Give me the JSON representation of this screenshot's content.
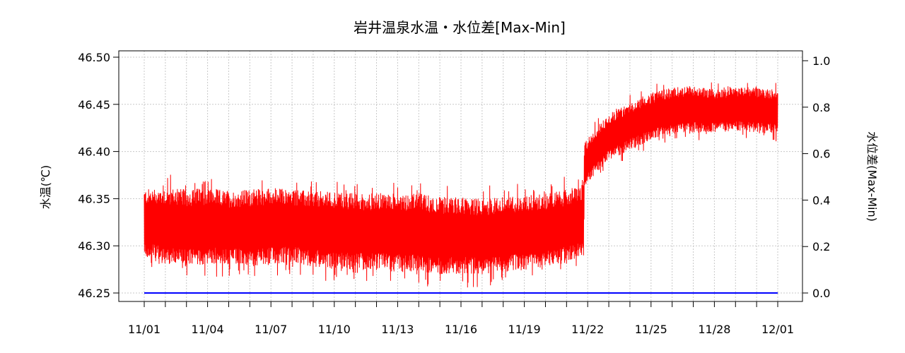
{
  "chart_data": {
    "type": "line",
    "title": "岩井温泉水温・水位差[Max-Min]",
    "ylabel_left": "水温(℃)",
    "ylabel_right": "水位差(Max-Min)",
    "x_range": [
      "11/01",
      "12/01"
    ],
    "x_tick_labels": [
      "11/01",
      "11/04",
      "11/07",
      "11/10",
      "11/13",
      "11/16",
      "11/19",
      "11/22",
      "11/25",
      "11/28",
      "12/01"
    ],
    "ylim_left": [
      46.25,
      46.5
    ],
    "ylim_right": [
      0.0,
      1.0
    ],
    "y_left_ticks": [
      "46.25",
      "46.30",
      "46.35",
      "46.40",
      "46.45",
      "46.50"
    ],
    "y_right_ticks": [
      "0.0",
      "0.2",
      "0.4",
      "0.6",
      "0.8",
      "1.0"
    ],
    "grid": true,
    "series": [
      {
        "axis": "left",
        "color": "#ff0000",
        "band": [
          {
            "day": 0.0,
            "low": 46.288,
            "high": 46.36
          },
          {
            "day": 1.0,
            "low": 46.28,
            "high": 46.362
          },
          {
            "day": 2.0,
            "low": 46.278,
            "high": 46.36
          },
          {
            "day": 3.0,
            "low": 46.28,
            "high": 46.362
          },
          {
            "day": 4.0,
            "low": 46.28,
            "high": 46.358
          },
          {
            "day": 5.0,
            "low": 46.278,
            "high": 46.36
          },
          {
            "day": 6.0,
            "low": 46.28,
            "high": 46.362
          },
          {
            "day": 7.0,
            "low": 46.282,
            "high": 46.36
          },
          {
            "day": 8.0,
            "low": 46.278,
            "high": 46.358
          },
          {
            "day": 9.0,
            "low": 46.276,
            "high": 46.358
          },
          {
            "day": 10.0,
            "low": 46.274,
            "high": 46.356
          },
          {
            "day": 11.0,
            "low": 46.274,
            "high": 46.356
          },
          {
            "day": 12.0,
            "low": 46.272,
            "high": 46.356
          },
          {
            "day": 13.0,
            "low": 46.272,
            "high": 46.356
          },
          {
            "day": 14.0,
            "low": 46.27,
            "high": 46.352
          },
          {
            "day": 15.0,
            "low": 46.27,
            "high": 46.352
          },
          {
            "day": 16.0,
            "low": 46.27,
            "high": 46.35
          },
          {
            "day": 17.0,
            "low": 46.272,
            "high": 46.352
          },
          {
            "day": 18.0,
            "low": 46.274,
            "high": 46.354
          },
          {
            "day": 19.0,
            "low": 46.278,
            "high": 46.356
          },
          {
            "day": 20.0,
            "low": 46.282,
            "high": 46.36
          },
          {
            "day": 20.8,
            "low": 46.29,
            "high": 46.365
          },
          {
            "day": 20.85,
            "low": 46.36,
            "high": 46.41
          },
          {
            "day": 21.2,
            "low": 46.372,
            "high": 46.42
          },
          {
            "day": 22.0,
            "low": 46.39,
            "high": 46.44
          },
          {
            "day": 23.0,
            "low": 46.402,
            "high": 46.452
          },
          {
            "day": 24.0,
            "low": 46.412,
            "high": 46.462
          },
          {
            "day": 25.0,
            "low": 46.418,
            "high": 46.468
          },
          {
            "day": 26.0,
            "low": 46.42,
            "high": 46.47
          },
          {
            "day": 27.0,
            "low": 46.42,
            "high": 46.466
          },
          {
            "day": 28.0,
            "low": 46.422,
            "high": 46.468
          },
          {
            "day": 29.0,
            "low": 46.42,
            "high": 46.468
          },
          {
            "day": 30.0,
            "low": 46.418,
            "high": 46.466
          }
        ]
      },
      {
        "axis": "right",
        "color": "#0000ff",
        "values": [
          {
            "day": 0.0,
            "value": 0.0
          },
          {
            "day": 30.0,
            "value": 0.0
          }
        ]
      }
    ]
  }
}
